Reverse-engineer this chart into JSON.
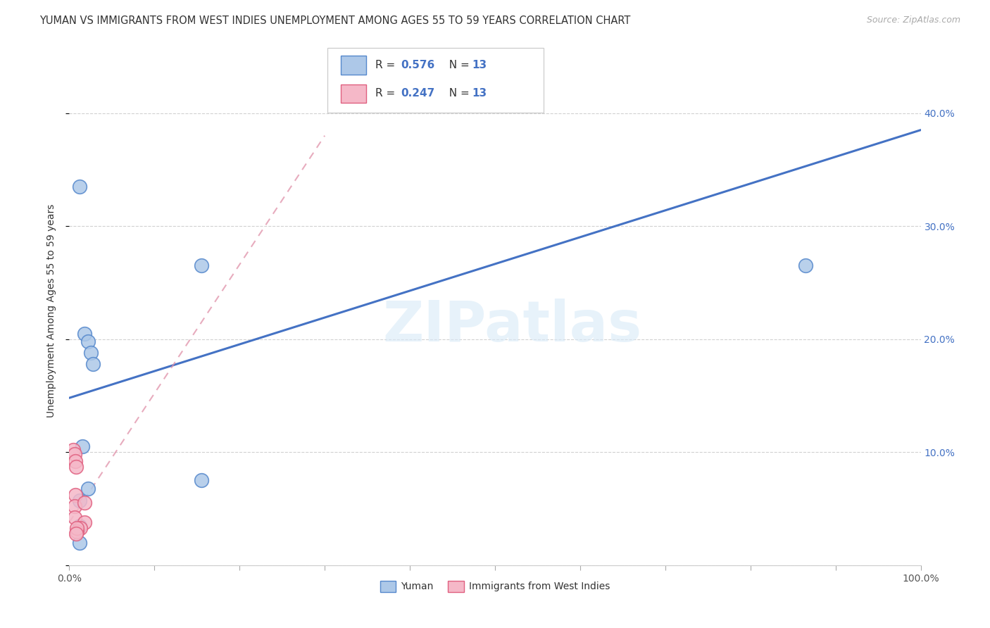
{
  "title": "YUMAN VS IMMIGRANTS FROM WEST INDIES UNEMPLOYMENT AMONG AGES 55 TO 59 YEARS CORRELATION CHART",
  "source": "Source: ZipAtlas.com",
  "ylabel": "Unemployment Among Ages 55 to 59 years",
  "xlim": [
    0,
    1.0
  ],
  "ylim": [
    0,
    0.45
  ],
  "yticks": [
    0.0,
    0.1,
    0.2,
    0.3,
    0.4
  ],
  "ytick_labels_right": [
    "",
    "10.0%",
    "20.0%",
    "30.0%",
    "40.0%"
  ],
  "xticks": [
    0.0,
    0.1,
    0.2,
    0.3,
    0.4,
    0.5,
    0.6,
    0.7,
    0.8,
    0.9,
    1.0
  ],
  "xtick_labels": [
    "0.0%",
    "",
    "",
    "",
    "",
    "",
    "",
    "",
    "",
    "",
    "100.0%"
  ],
  "yuman_x": [
    0.012,
    0.018,
    0.022,
    0.025,
    0.028,
    0.015,
    0.022,
    0.155,
    0.155,
    0.012,
    0.865,
    0.012,
    0.012
  ],
  "yuman_y": [
    0.335,
    0.205,
    0.198,
    0.188,
    0.178,
    0.105,
    0.068,
    0.075,
    0.265,
    0.057,
    0.265,
    0.035,
    0.02
  ],
  "west_indies_x": [
    0.005,
    0.006,
    0.007,
    0.008,
    0.007,
    0.006,
    0.006,
    0.018,
    0.013,
    0.009,
    0.018,
    0.009,
    0.008
  ],
  "west_indies_y": [
    0.102,
    0.098,
    0.092,
    0.087,
    0.062,
    0.052,
    0.042,
    0.038,
    0.033,
    0.03,
    0.055,
    0.033,
    0.028
  ],
  "yuman_color": "#adc8e8",
  "west_indies_color": "#f5b8c8",
  "yuman_edge_color": "#5588cc",
  "west_indies_edge_color": "#e06080",
  "line_blue_color": "#4472c4",
  "line_pink_color": "#e8a0b0",
  "R_yuman": "0.576",
  "N_yuman": "13",
  "R_west_indies": "0.247",
  "N_west_indies": "13",
  "legend_label_yuman": "Yuman",
  "legend_label_west_indies": "Immigrants from West Indies",
  "watermark_text": "ZIPatlas",
  "background_color": "#ffffff",
  "grid_color": "#cccccc",
  "blue_line_x": [
    0.0,
    1.0
  ],
  "blue_line_y": [
    0.148,
    0.385
  ],
  "pink_line_x": [
    0.0,
    0.3
  ],
  "pink_line_y": [
    0.038,
    0.38
  ]
}
